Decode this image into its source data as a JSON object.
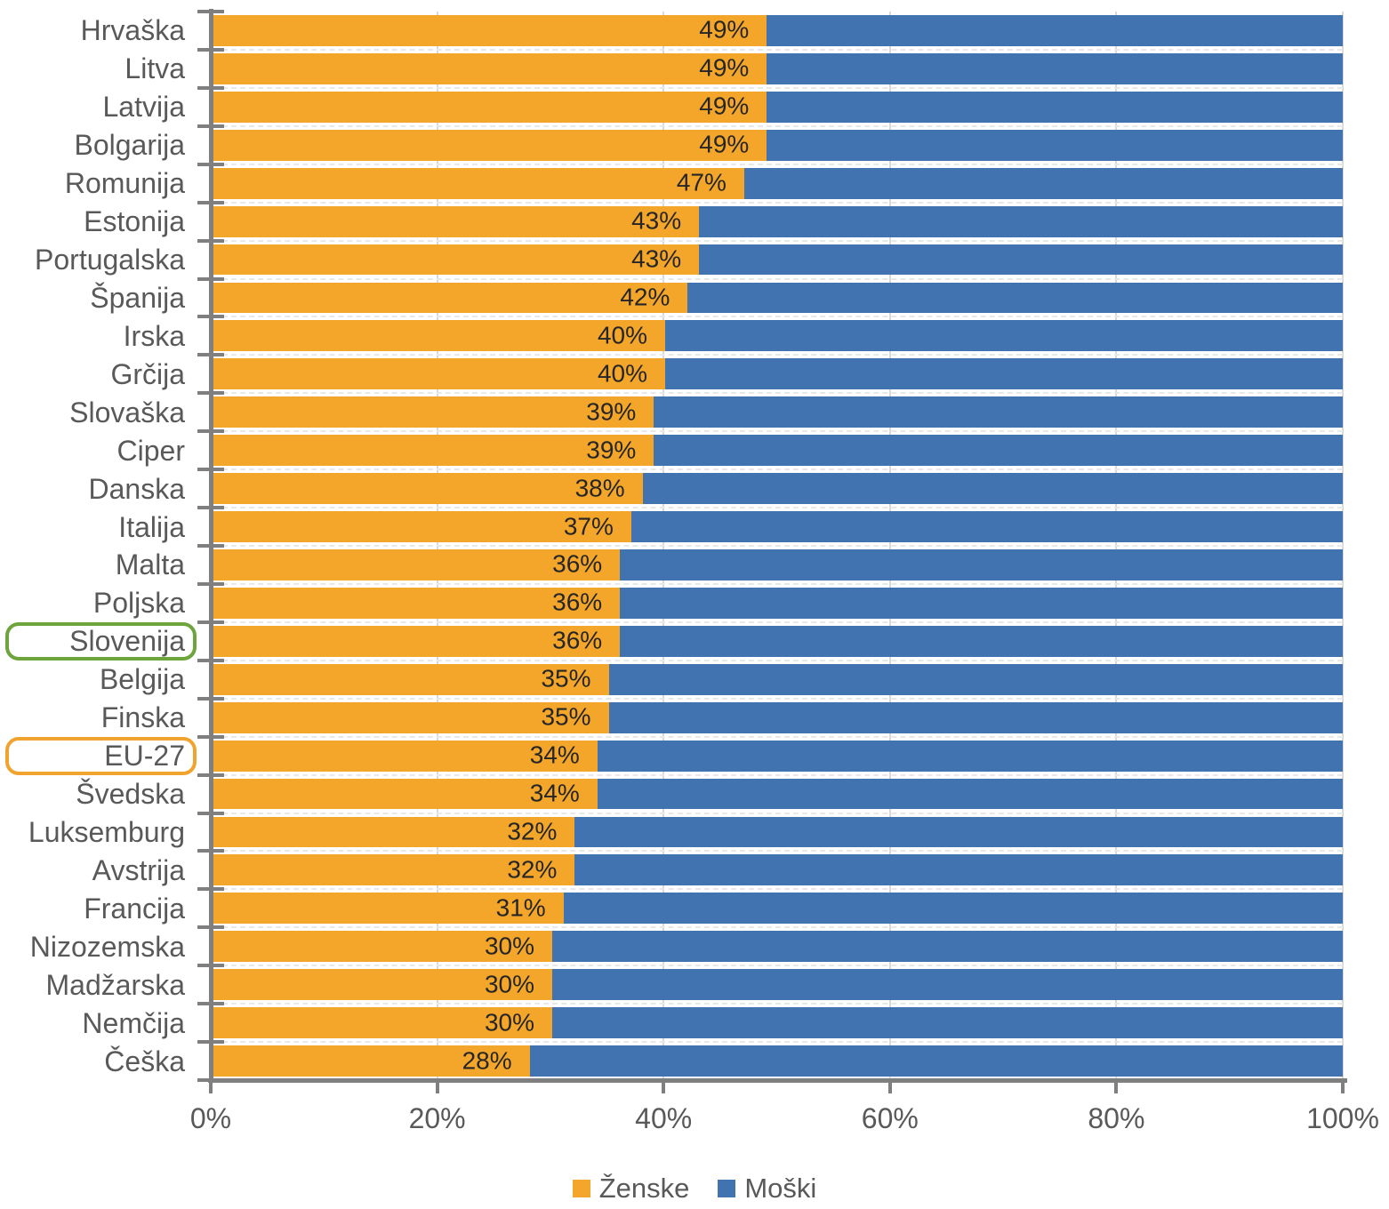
{
  "chart_data": {
    "type": "bar",
    "orientation": "horizontal-stacked",
    "title": "",
    "xlabel": "",
    "ylabel": "",
    "xlim": [
      0,
      100
    ],
    "x_tick_labels": [
      "0%",
      "20%",
      "40%",
      "60%",
      "80%",
      "100%"
    ],
    "x_tick_values": [
      0,
      20,
      40,
      60,
      80,
      100
    ],
    "grid": "vertical-major",
    "legend_position": "bottom",
    "value_label_suffix": "%",
    "categories": [
      "Hrvaška",
      "Litva",
      "Latvija",
      "Bolgarija",
      "Romunija",
      "Estonija",
      "Portugalska",
      "Španija",
      "Irska",
      "Grčija",
      "Slovaška",
      "Ciper",
      "Danska",
      "Italija",
      "Malta",
      "Poljska",
      "Slovenija",
      "Belgija",
      "Finska",
      "EU-27",
      "Švedska",
      "Luksemburg",
      "Avstrija",
      "Francija",
      "Nizozemska",
      "Madžarska",
      "Nemčija",
      "Češka"
    ],
    "series": [
      {
        "name": "Ženske",
        "color": "#f4a62a",
        "values": [
          49,
          49,
          49,
          49,
          47,
          43,
          43,
          42,
          40,
          40,
          39,
          39,
          38,
          37,
          36,
          36,
          36,
          35,
          35,
          34,
          34,
          32,
          32,
          31,
          30,
          30,
          30,
          28
        ],
        "labels_shown": true
      },
      {
        "name": "Moški",
        "color": "#4273b1",
        "values": [
          51,
          51,
          51,
          51,
          53,
          57,
          57,
          58,
          60,
          60,
          61,
          61,
          62,
          63,
          64,
          64,
          64,
          65,
          65,
          66,
          66,
          68,
          68,
          69,
          70,
          70,
          70,
          72
        ],
        "labels_shown": false
      }
    ],
    "highlights": [
      {
        "category": "Slovenija",
        "box_color": "#6ea43c"
      },
      {
        "category": "EU-27",
        "box_color": "#f0a32e"
      }
    ],
    "colors": {
      "axis_line": "#7f7f7f",
      "tick": "#7f7f7f",
      "axis_text": "#595959",
      "category_text": "#595959",
      "value_text": "#262626",
      "gridline": "#d9d9d9",
      "background": "#ffffff"
    }
  }
}
